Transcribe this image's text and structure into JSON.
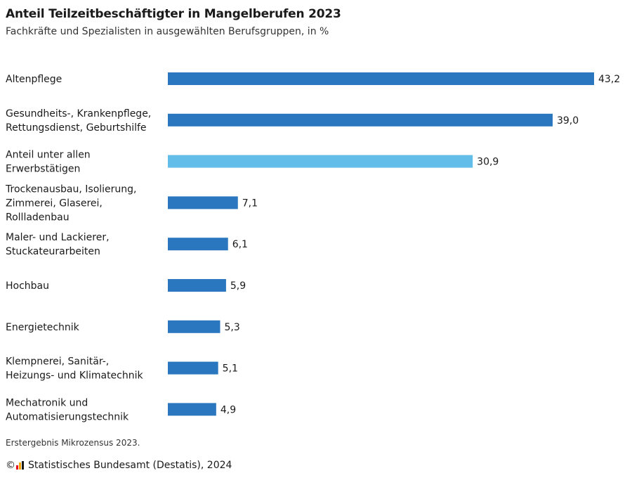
{
  "chart_data": {
    "type": "bar",
    "orientation": "horizontal",
    "title": "Anteil Teilzeitbeschäftigter in Mangelberufen 2023",
    "subtitle": "Fachkräfte und Spezialisten in ausgewählten Berufsgruppen, in %",
    "categories": [
      [
        "Altenpflege"
      ],
      [
        "Gesundheits-, Krankenpflege,",
        "Rettungsdienst, Geburtshilfe"
      ],
      [
        "Anteil unter allen",
        "Erwerbstätigen"
      ],
      [
        "Trockenausbau, Isolierung,",
        "Zimmerei, Glaserei,",
        "Rollladenbau"
      ],
      [
        "Maler- und Lackierer,",
        "Stuckateurarbeiten"
      ],
      [
        "Hochbau"
      ],
      [
        "Energietechnik"
      ],
      [
        "Klempnerei, Sanitär-,",
        "Heizungs- und Klimatechnik"
      ],
      [
        "Mechatronik und",
        "Automatisierungstechnik"
      ]
    ],
    "values": [
      43.2,
      39.0,
      30.9,
      7.1,
      6.1,
      5.9,
      5.3,
      5.1,
      4.9
    ],
    "value_labels": [
      "43,2",
      "39,0",
      "30,9",
      "7,1",
      "6,1",
      "5,9",
      "5,3",
      "5,1",
      "4,9"
    ],
    "highlight_index": 2,
    "colors": {
      "bar": "#2a77bf",
      "highlight": "#62bde8"
    },
    "xlim": [
      0,
      43.2
    ],
    "grid": false,
    "legend": false
  },
  "footer": {
    "note": "Erstergebnis Mikrozensus 2023.",
    "copyright": "©",
    "source": "Statistisches Bundesamt (Destatis), 2024",
    "logo_colors": [
      "#e2001a",
      "#f7a600",
      "#1a1a1a"
    ]
  }
}
